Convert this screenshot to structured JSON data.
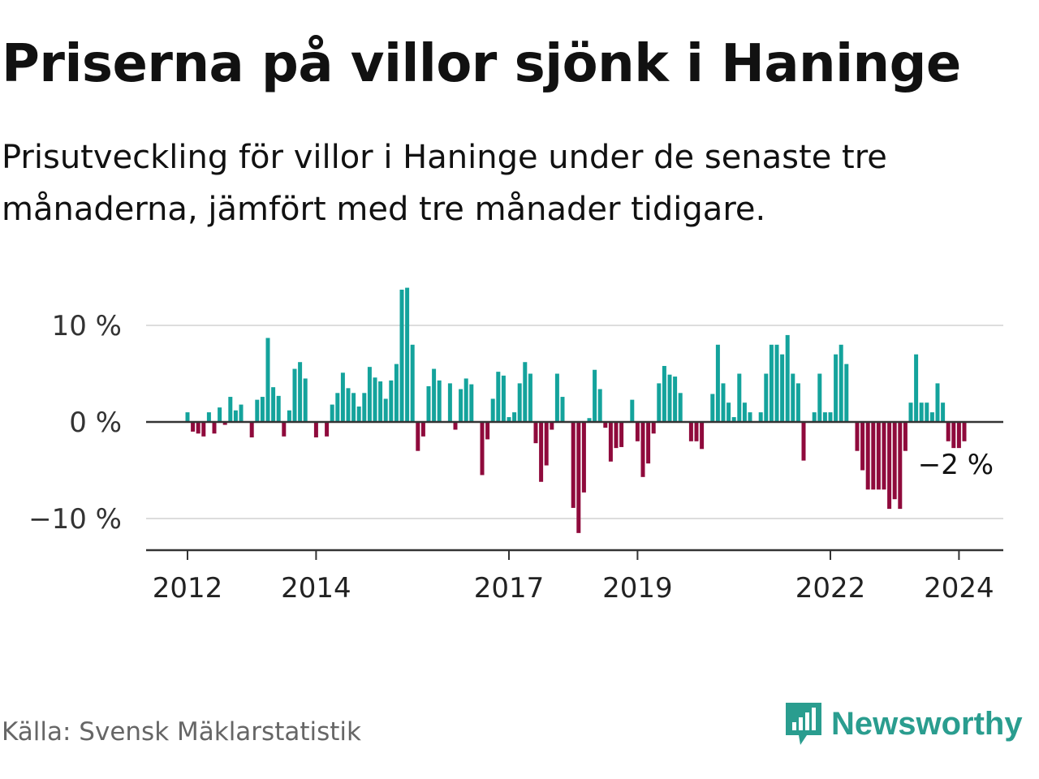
{
  "header": {
    "title": "Priserna på villor sjönk i Haninge",
    "subtitle": "Prisutveckling för villor i Haninge under de senaste tre månaderna, jämfört med tre månader tidigare."
  },
  "footer": {
    "source": "Källa: Svensk Mäklarstatistik",
    "brand": "Newsworthy",
    "brand_icon": "chart-speech-bubble-icon"
  },
  "colors": {
    "positive": "#14a39c",
    "negative": "#8f0a3c",
    "grid": "#dddddd",
    "axis": "#333333",
    "brand": "#2a9d8f"
  },
  "chart_data": {
    "type": "bar",
    "title": "Priserna på villor sjönk i Haninge",
    "xlabel": "",
    "ylabel": "",
    "x_start": "2012-01",
    "frequency": "monthly",
    "ylim": [
      -13,
      14
    ],
    "y_ticks": [
      {
        "value": 10,
        "label": "10 %"
      },
      {
        "value": 0,
        "label": "0 %"
      },
      {
        "value": -10,
        "label": "−10 %"
      }
    ],
    "x_ticks": [
      {
        "index": 0,
        "label": "2012"
      },
      {
        "index": 24,
        "label": "2014"
      },
      {
        "index": 60,
        "label": "2017"
      },
      {
        "index": 84,
        "label": "2019"
      },
      {
        "index": 120,
        "label": "2022"
      },
      {
        "index": 144,
        "label": "2024"
      }
    ],
    "last_value_label": "−2 %",
    "values": [
      1,
      -1,
      -1.2,
      -1.5,
      1,
      -1.2,
      1.5,
      -0.3,
      2.6,
      1.2,
      1.8,
      0,
      -1.6,
      2.3,
      2.6,
      8.7,
      3.6,
      2.7,
      -1.5,
      1.2,
      5.5,
      6.2,
      4.5,
      0,
      -1.6,
      0,
      -1.5,
      1.8,
      3,
      5.1,
      3.5,
      3,
      1.6,
      3,
      5.7,
      4.6,
      4.2,
      2.4,
      4.3,
      6,
      13.7,
      13.9,
      8,
      -3,
      -1.5,
      3.7,
      5.5,
      4.3,
      0,
      4,
      -0.8,
      3.4,
      4.5,
      3.9,
      0,
      -5.5,
      -1.8,
      2.4,
      5.2,
      4.8,
      0.5,
      1,
      4,
      6.2,
      5,
      -2.2,
      -6.2,
      -4.5,
      -0.8,
      5,
      2.6,
      0,
      -8.9,
      -11.5,
      -7.3,
      0.4,
      5.4,
      3.4,
      -0.6,
      -4.1,
      -2.7,
      -2.6,
      0,
      2.3,
      -2,
      -5.7,
      -4.3,
      -1.2,
      4,
      5.8,
      4.9,
      4.7,
      3,
      0,
      -2,
      -2,
      -2.8,
      0,
      2.9,
      8,
      4,
      2,
      0.5,
      5,
      2,
      1,
      0,
      1,
      5,
      8,
      8,
      7,
      9,
      5,
      4,
      -4,
      0,
      1,
      5,
      1,
      1,
      7,
      8,
      6,
      0,
      -3,
      -5,
      -7,
      -7,
      -7,
      -7,
      -9,
      -8,
      -9,
      -3,
      2,
      7,
      2,
      2,
      1,
      4,
      2,
      -2,
      -2.7,
      -2.7,
      -2
    ]
  }
}
